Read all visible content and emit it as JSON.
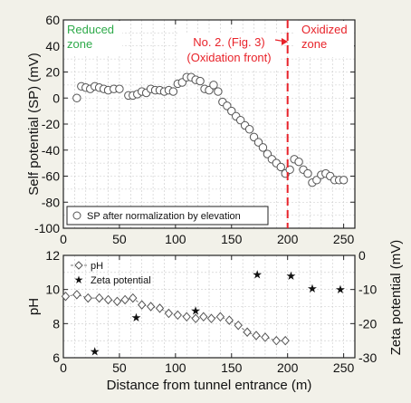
{
  "chart_data": [
    {
      "type": "scatter",
      "ylabel": "Self potential (SP) (mV)",
      "xlim": [
        0,
        260
      ],
      "ylim": [
        -100,
        60
      ],
      "x_ticks": [
        0,
        50,
        100,
        150,
        200,
        250
      ],
      "y_ticks": [
        60,
        40,
        20,
        0,
        -20,
        -40,
        -60,
        -80,
        -100
      ],
      "grid": true,
      "legend": "bottom-left",
      "series": [
        {
          "name": "SP after normalization by elevation",
          "marker": "open-circle",
          "color": "#555555",
          "x": [
            12,
            16,
            20,
            24,
            28,
            32,
            36,
            40,
            45,
            50,
            58,
            62,
            66,
            70,
            74,
            78,
            82,
            86,
            90,
            94,
            98,
            102,
            106,
            110,
            114,
            118,
            122,
            126,
            130,
            134,
            138,
            142,
            146,
            150,
            154,
            158,
            162,
            166,
            170,
            174,
            178,
            182,
            186,
            190,
            194,
            198,
            202,
            206,
            210,
            214,
            218,
            222,
            226,
            230,
            234,
            238,
            242,
            246,
            250
          ],
          "y": [
            0,
            9,
            8,
            7,
            9,
            8,
            7,
            6,
            7,
            7,
            2,
            2,
            3,
            5,
            4,
            7,
            6,
            6,
            5,
            6,
            5,
            11,
            12,
            16,
            16,
            14,
            13,
            7,
            6,
            10,
            5,
            -3,
            -6,
            -10,
            -14,
            -17,
            -21,
            -24,
            -30,
            -34,
            -38,
            -43,
            -47,
            -50,
            -53,
            -58,
            -55,
            -47,
            -49,
            -55,
            -58,
            -65,
            -63,
            -59,
            -58,
            -60,
            -63,
            -63,
            -63
          ]
        }
      ],
      "annotations": {
        "reduced": "Reduced\nzone",
        "oxidized": "Oxidized\nzone",
        "front": "No. 2. (Fig. 3)\n(Oxidation front)",
        "front_x": 200
      },
      "colors": {
        "reduced": "#2eaa4a",
        "oxidized": "#e8232a",
        "front_line": "#e8232a"
      }
    },
    {
      "type": "scatter",
      "xlabel": "Distance from tunnel entrance (m)",
      "ylabel": "pH",
      "ylabel_right": "Zeta potential (mV)",
      "xlim": [
        0,
        260
      ],
      "ylim": [
        6,
        12
      ],
      "ylim_right": [
        -30,
        0
      ],
      "x_ticks": [
        0,
        50,
        100,
        150,
        200,
        250
      ],
      "y_ticks": [
        12,
        10,
        8,
        6
      ],
      "y_ticks_right": [
        0,
        -10,
        -20,
        -30
      ],
      "grid": true,
      "legend": "top-left",
      "series": [
        {
          "name": "pH",
          "marker": "open-diamond-dashed-line",
          "color": "#555555",
          "x": [
            2,
            12,
            22,
            32,
            40,
            48,
            55,
            62,
            70,
            78,
            86,
            94,
            102,
            110,
            118,
            125,
            132,
            140,
            148,
            156,
            164,
            172,
            180,
            190,
            198
          ],
          "y": [
            9.6,
            9.7,
            9.5,
            9.5,
            9.4,
            9.3,
            9.4,
            9.5,
            9.1,
            9.0,
            8.9,
            8.6,
            8.5,
            8.4,
            8.3,
            8.4,
            8.3,
            8.4,
            8.2,
            7.9,
            7.5,
            7.3,
            7.2,
            7.0,
            7.0
          ]
        },
        {
          "name": "Zeta potential",
          "marker": "star",
          "axis": "right",
          "color": "#111111",
          "x": [
            28,
            65,
            118,
            173,
            203,
            222,
            247
          ],
          "y": [
            -28,
            -18,
            -16,
            -5.5,
            -5.8,
            -9.5,
            -9.8
          ]
        }
      ]
    }
  ]
}
